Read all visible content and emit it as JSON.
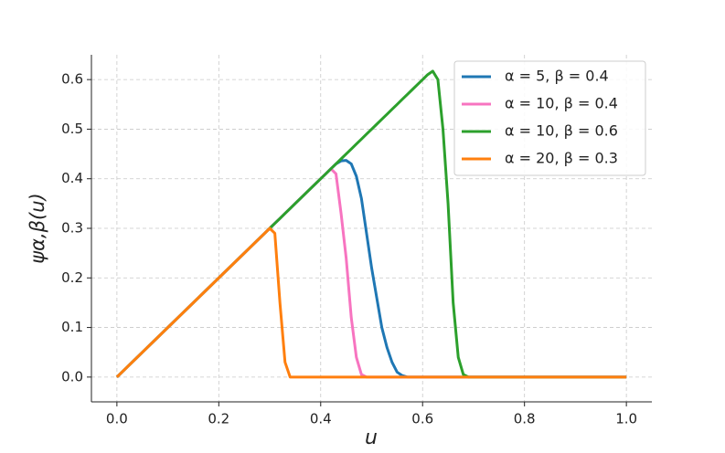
{
  "chart_data": {
    "type": "line",
    "x_label": "u",
    "y_label": "ψα,β(u)",
    "x": [
      0,
      0.3,
      0.31,
      0.32,
      0.33,
      0.34,
      0.35,
      0.4,
      0.41,
      0.42,
      0.43,
      0.44,
      0.45,
      0.46,
      0.47,
      0.48,
      0.49,
      0.5,
      0.51,
      0.52,
      0.53,
      0.54,
      0.55,
      0.56,
      0.57,
      0.58,
      0.59,
      0.6,
      0.61,
      0.62,
      0.63,
      0.64,
      0.65,
      0.66,
      0.67,
      0.68,
      0.69,
      0.7,
      1.0
    ],
    "series": [
      {
        "name": "α = 5, β = 0.4",
        "color": "#1f77b4",
        "values": [
          0,
          0.3,
          0.31,
          0.32,
          0.33,
          0.34,
          0.35,
          0.4,
          0.41,
          0.42,
          0.43,
          0.436,
          0.437,
          0.43,
          0.405,
          0.36,
          0.29,
          0.22,
          0.16,
          0.1,
          0.06,
          0.03,
          0.01,
          0.003,
          0,
          0,
          0,
          0,
          0,
          0,
          0,
          0,
          0,
          0,
          0,
          0,
          0,
          0,
          0
        ]
      },
      {
        "name": "α = 10, β = 0.4",
        "color": "#f774c0",
        "values": [
          0,
          0.3,
          0.31,
          0.32,
          0.33,
          0.34,
          0.35,
          0.4,
          0.41,
          0.42,
          0.41,
          0.33,
          0.24,
          0.12,
          0.04,
          0.005,
          0,
          0,
          0,
          0,
          0,
          0,
          0,
          0,
          0,
          0,
          0,
          0,
          0,
          0,
          0,
          0,
          0,
          0,
          0,
          0,
          0,
          0,
          0
        ]
      },
      {
        "name": "α = 10, β = 0.6",
        "color": "#2ca02c",
        "values": [
          0,
          0.3,
          0.31,
          0.32,
          0.33,
          0.34,
          0.35,
          0.4,
          0.41,
          0.42,
          0.43,
          0.44,
          0.45,
          0.46,
          0.47,
          0.48,
          0.49,
          0.5,
          0.51,
          0.52,
          0.53,
          0.54,
          0.55,
          0.56,
          0.57,
          0.58,
          0.59,
          0.6,
          0.61,
          0.617,
          0.6,
          0.5,
          0.35,
          0.15,
          0.04,
          0.005,
          0,
          0,
          0
        ]
      },
      {
        "name": "α = 20, β = 0.3",
        "color": "#ff7f0e",
        "values": [
          0,
          0.3,
          0.29,
          0.15,
          0.03,
          0,
          0,
          0,
          0,
          0,
          0,
          0,
          0,
          0,
          0,
          0,
          0,
          0,
          0,
          0,
          0,
          0,
          0,
          0,
          0,
          0,
          0,
          0,
          0,
          0,
          0,
          0,
          0,
          0,
          0,
          0,
          0,
          0,
          0
        ]
      }
    ],
    "xlim": [
      -0.05,
      1.05
    ],
    "ylim": [
      -0.05,
      0.65
    ],
    "xticks": [
      {
        "value": 0,
        "label": "0.0"
      },
      0.2,
      0.4,
      0.6,
      0.8,
      {
        "value": 1,
        "label": "1.0"
      }
    ],
    "yticks": [
      {
        "value": 0,
        "label": "0.0"
      },
      0.1,
      0.2,
      0.3,
      0.4,
      0.5,
      0.6
    ],
    "grid": true,
    "legend": "upper right"
  }
}
